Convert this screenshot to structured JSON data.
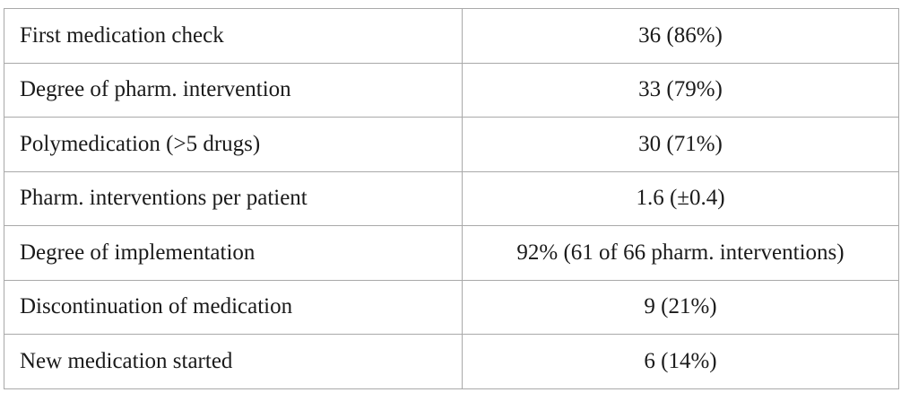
{
  "table": {
    "rows": [
      {
        "label": "First medication check",
        "value": "36 (86%)"
      },
      {
        "label": "Degree of pharm. intervention",
        "value": "33 (79%)"
      },
      {
        "label": "Polymedication (>5 drugs)",
        "value": "30 (71%)"
      },
      {
        "label": "Pharm. interventions per patient",
        "value": "1.6 (±0.4)"
      },
      {
        "label": "Degree of implementation",
        "value": "92% (61 of 66 pharm. interventions)"
      },
      {
        "label": "Discontinuation of medication",
        "value": "9 (21%)"
      },
      {
        "label": "New medication started",
        "value": "6 (14%)"
      }
    ]
  }
}
